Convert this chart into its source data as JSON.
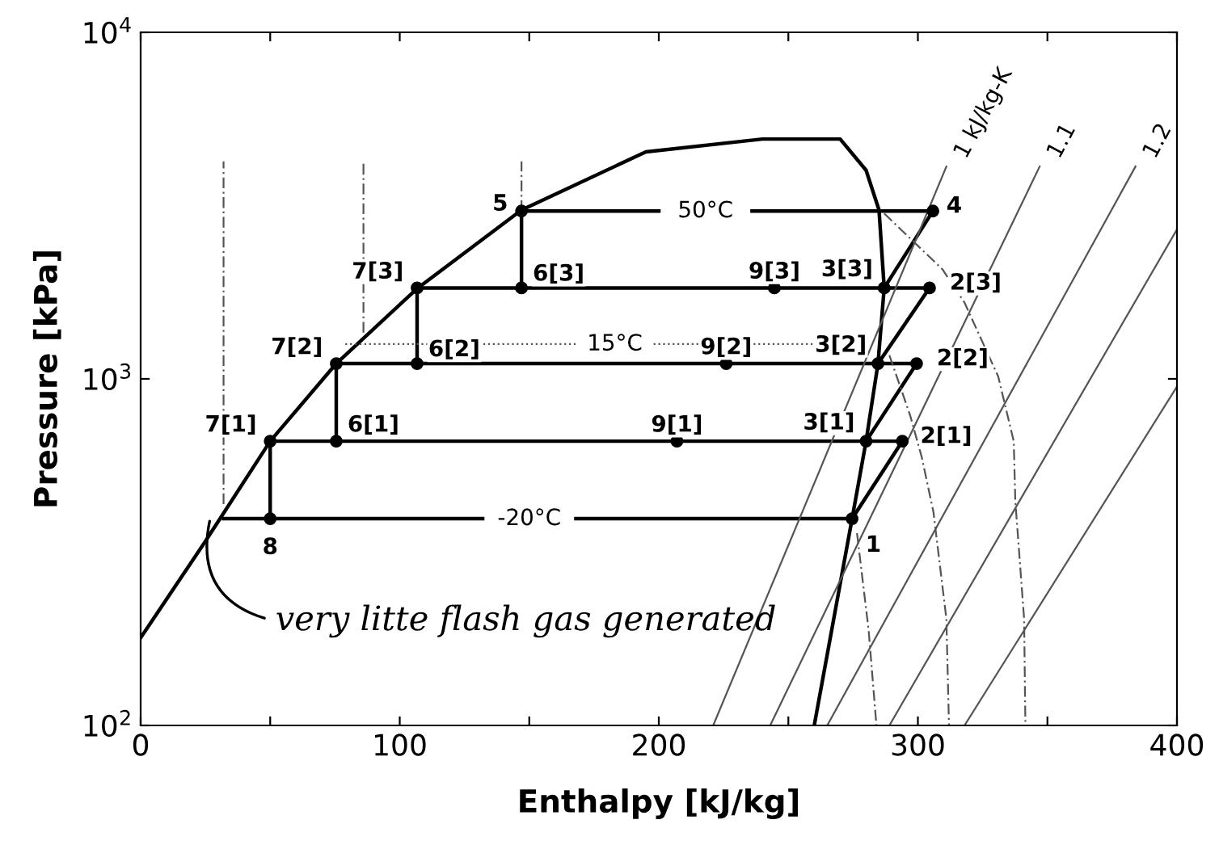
{
  "chart_data": {
    "type": "line",
    "xlabel": "Enthalpy [kJ/kg]",
    "ylabel": "Pressure [kPa]",
    "log": "y",
    "xlim": [
      0,
      400
    ],
    "xticks": [
      0,
      {
        "value": 50,
        "label": null
      },
      100,
      {
        "value": 150,
        "label": null
      },
      200,
      {
        "value": 250,
        "label": null
      },
      300,
      {
        "value": 350,
        "label": null
      },
      400
    ],
    "ylim": [
      100,
      10000
    ],
    "yticks": [
      {
        "value": 100,
        "label": "10$^{2}$"
      },
      {
        "value": 1000,
        "label": "10$^{3}$"
      },
      {
        "value": 10000,
        "label": "10$^{4}$"
      }
    ],
    "grid": false,
    "line_style": "solid",
    "series": [
      {
        "color": "#000000",
        "x": [
          0,
          25,
          50,
          75.5,
          107,
          147,
          195,
          240,
          270,
          280,
          285,
          287,
          284.6,
          280,
          274.6,
          260
        ],
        "values": [
          179,
          340,
          661,
          1107,
          1830,
          3070,
          4520,
          4920,
          4920,
          4000,
          3070,
          1830,
          1107,
          661,
          395,
          100
        ]
      },
      {
        "color": "#000000",
        "x": [
          147,
          200,
          218,
          236,
          305.8
        ],
        "values": [
          3050,
          3050,
          null,
          3050,
          3050
        ]
      },
      {
        "color": "#000000",
        "x": [
          106.7,
          304.5
        ],
        "values": [
          1830,
          1830
        ]
      },
      {
        "color": "#000000",
        "x": [
          75.5,
          299.5
        ],
        "values": [
          1107,
          1107
        ]
      },
      {
        "color": "#000000",
        "x": [
          50,
          294
        ],
        "values": [
          661,
          661
        ]
      },
      {
        "color": "#000000",
        "x": [
          32,
          132,
          150,
          168,
          274.6
        ],
        "values": [
          395,
          395,
          null,
          395,
          395
        ]
      },
      {
        "color": "#000000",
        "x": [
          147,
          147
        ],
        "values": [
          3050,
          1830
        ]
      },
      {
        "color": "#000000",
        "x": [
          106.7,
          106.7
        ],
        "values": [
          1830,
          1107
        ]
      },
      {
        "color": "#000000",
        "x": [
          75.5,
          75.5
        ],
        "values": [
          1107,
          661
        ]
      },
      {
        "color": "#000000",
        "x": [
          50,
          50
        ],
        "values": [
          661,
          395
        ]
      },
      {
        "color": "#000000",
        "x": [
          274.6,
          294
        ],
        "values": [
          395,
          661
        ]
      },
      {
        "color": "#000000",
        "x": [
          280,
          299.5
        ],
        "values": [
          661,
          1107
        ]
      },
      {
        "color": "#000000",
        "x": [
          284.6,
          304.5
        ],
        "values": [
          1107,
          1830
        ]
      },
      {
        "color": "#000000",
        "x": [
          287,
          305.8
        ],
        "values": [
          1830,
          3050
        ]
      },
      {
        "color": "#555555",
        "x": [
          221,
          311
        ],
        "values": [
          100,
          4100
        ]
      },
      {
        "color": "#555555",
        "x": [
          243,
          347
        ],
        "values": [
          100,
          4100
        ]
      },
      {
        "color": "#555555",
        "x": [
          265,
          384
        ],
        "values": [
          100,
          4100
        ]
      },
      {
        "color": "#555555",
        "x": [
          289,
          400
        ],
        "values": [
          100,
          2700
        ]
      },
      {
        "color": "#555555",
        "x": [
          318,
          400
        ],
        "values": [
          100,
          950
        ]
      },
      {
        "color": "#555555",
        "line_style": "dashed",
        "x": [
          287,
          309.5,
          318,
          331,
          337,
          337.6,
          341,
          341.5
        ],
        "values": [
          3000,
          2070,
          1660,
          1016,
          661,
          445,
          203,
          100
        ]
      },
      {
        "color": "#555555",
        "line_style": "dashed",
        "x": [
          289,
          297,
          301.5,
          306,
          311,
          312
        ],
        "values": [
          1170,
          785,
          594,
          413,
          203,
          100
        ]
      },
      {
        "color": "#555555",
        "line_style": "dashed",
        "x": [
          276.5,
          281,
          284
        ],
        "values": [
          359,
          188,
          100
        ]
      },
      {
        "color": "#555555",
        "line_style": "dashed",
        "x": [
          32,
          32
        ],
        "values": [
          435,
          4240
        ]
      },
      {
        "color": "#555555",
        "line_style": "dashed",
        "x": [
          86,
          86
        ],
        "values": [
          1360,
          4240
        ]
      },
      {
        "color": "#555555",
        "line_style": "dashed",
        "x": [
          147,
          147
        ],
        "values": [
          3050,
          4240
        ]
      },
      {
        "color": "#555555",
        "line_style": "dotted",
        "x": [
          79,
          168,
          183,
          198,
          270
        ],
        "values": [
          1260,
          1260,
          null,
          1260,
          1260
        ]
      },
      {
        "type": "scatter",
        "color": "#000000",
        "marker": "circle",
        "x": [
          147,
          106.7,
          147,
          75.5,
          106.7,
          50,
          75.5,
          50,
          274.6,
          207,
          280,
          294,
          226,
          284.6,
          299.5,
          244.6,
          287,
          304.5,
          305.8
        ],
        "values": [
          3050,
          1830,
          1830,
          1107,
          1107,
          661,
          661,
          395,
          395,
          661,
          661,
          661,
          1107,
          1107,
          1107,
          1830,
          1830,
          1830,
          3050
        ]
      }
    ],
    "annotations": [
      "50°C",
      "15°C",
      "-20°C",
      {
        "text": "1 kJ/kg-K",
        "x": 311,
        "y": 4100
      },
      {
        "text": "1.1",
        "x": 347,
        "y": 4100
      },
      {
        "text": "1.2",
        "x": 384,
        "y": 4100
      },
      {
        "text": "5",
        "x": 147,
        "y": 3050
      },
      {
        "text": "7[3]",
        "x": 106.7,
        "y": 1830
      },
      {
        "text": "6[3]",
        "x": 147,
        "y": 1830
      },
      {
        "text": "7[2]",
        "x": 75.5,
        "y": 1107
      },
      {
        "text": "6[2]",
        "x": 106.7,
        "y": 1107
      },
      {
        "text": "7[1]",
        "x": 50,
        "y": 661
      },
      {
        "text": "6[1]",
        "x": 75.5,
        "y": 661
      },
      {
        "text": "8",
        "x": 50,
        "y": 395
      },
      {
        "text": "1",
        "x": 274.6,
        "y": 395
      },
      {
        "text": "9[1]",
        "x": 207,
        "y": 661
      },
      {
        "text": "3[1]",
        "x": 280,
        "y": 661
      },
      {
        "text": "2[1]",
        "x": 294,
        "y": 661
      },
      {
        "text": "9[2]",
        "x": 226,
        "y": 1107
      },
      {
        "text": "3[2]",
        "x": 284.6,
        "y": 1107
      },
      {
        "text": "2[2]",
        "x": 299.5,
        "y": 1107
      },
      {
        "text": "9[3]",
        "x": 244.6,
        "y": 1830
      },
      {
        "text": "3[3]",
        "x": 287,
        "y": 1830
      },
      {
        "text": "2[3]",
        "x": 304.5,
        "y": 1830
      },
      {
        "text": "4",
        "x": 305.8,
        "y": 3050
      },
      {
        "text": "very litte flash gas generated",
        "x": 27,
        "y": 400
      }
    ]
  }
}
